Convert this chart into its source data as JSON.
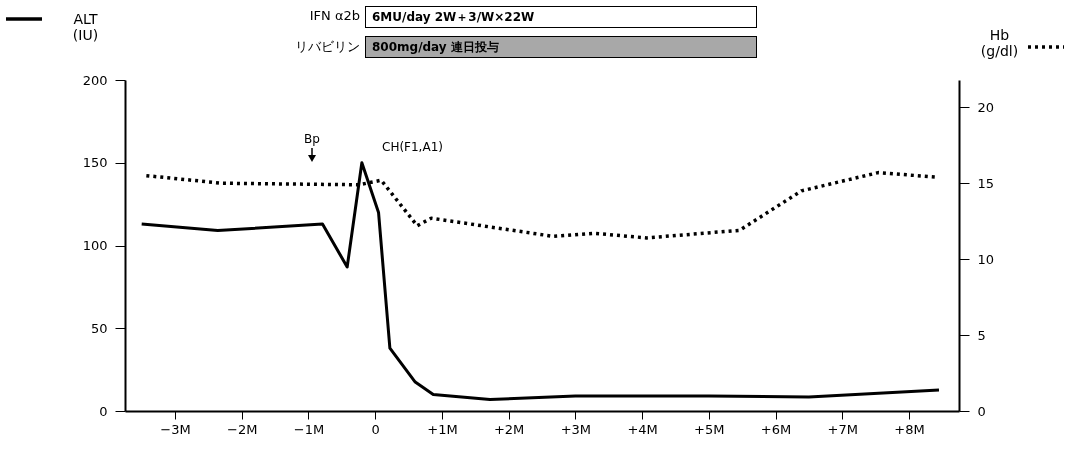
{
  "chart_data": {
    "type": "line",
    "ylabel": "ALT (IU)",
    "y2label": "Hb (g/dl)",
    "xlim": [
      -3.75,
      8.75
    ],
    "xticks": [
      {
        "value": -3,
        "label": "−3M"
      },
      {
        "value": -2,
        "label": "−2M"
      },
      {
        "value": -1,
        "label": "−1M"
      },
      0,
      {
        "value": 1,
        "label": "+1M"
      },
      {
        "value": 2,
        "label": "+2M"
      },
      {
        "value": 3,
        "label": "+3M"
      },
      {
        "value": 4,
        "label": "+4M"
      },
      {
        "value": 5,
        "label": "+5M"
      },
      {
        "value": 6,
        "label": "+6M"
      },
      {
        "value": 7,
        "label": "+7M"
      },
      {
        "value": 8,
        "label": "+8M"
      }
    ],
    "ylim": [
      0,
      200
    ],
    "yticks": [
      0,
      50,
      100,
      150,
      200
    ],
    "y2lim": [
      0,
      21.8
    ],
    "y2ticks": [
      0,
      5,
      10,
      15,
      20
    ],
    "series": [
      {
        "color": "#000000",
        "line_style": "solid",
        "x": [
          -3.5,
          -2.36,
          -0.79,
          -0.42,
          -0.2,
          0.05,
          0.22,
          0.6,
          0.87,
          1.72,
          3,
          4,
          5,
          6.5,
          8.45
        ],
        "values": [
          113,
          109,
          113,
          87,
          150,
          120,
          38,
          17.5,
          10,
          7,
          9,
          9,
          9,
          8.5,
          12.7
        ]
      },
      {
        "color": "#000000",
        "line_style": "dotted",
        "axis": "y2",
        "x": [
          -3.43,
          -2.3,
          -0.24,
          0.09,
          0.63,
          0.84,
          2.67,
          3.3,
          4.07,
          5.46,
          6.39,
          7.54,
          8.42
        ],
        "values": [
          15.5,
          15.0,
          14.9,
          15.2,
          12.2,
          12.7,
          11.5,
          11.7,
          11.4,
          11.9,
          14.5,
          15.7,
          15.4
        ]
      }
    ],
    "annotations": [
      "IFN α2b",
      "6MU/day  2W＋3/W×22W",
      "リバビリン",
      "800mg/day  連日投与",
      "Bp",
      "CH(F1,A1)"
    ]
  }
}
